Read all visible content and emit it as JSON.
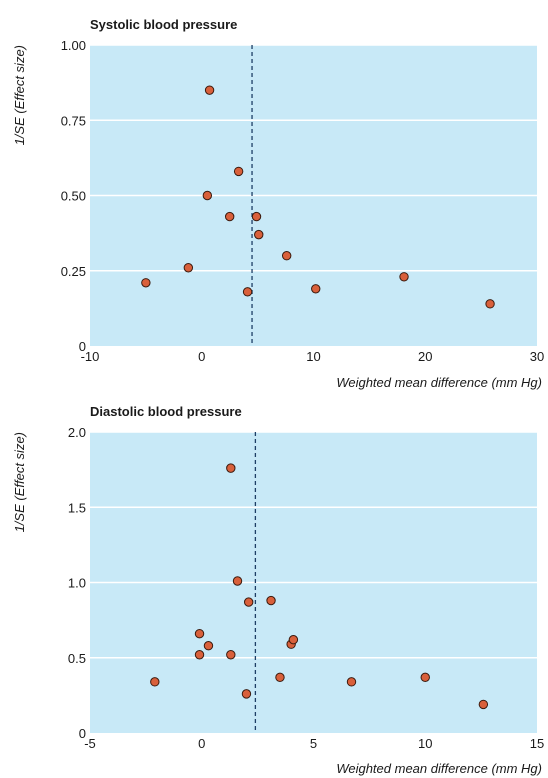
{
  "chart_data": [
    {
      "type": "scatter",
      "title": "Systolic blood pressure",
      "xlabel": "Weighted mean difference (mm Hg)",
      "ylabel": "1/SE (Effect size)",
      "xlim": [
        -10,
        30
      ],
      "ylim": [
        0,
        1.0
      ],
      "xticks": [
        "-10",
        "0",
        "10",
        "20",
        "30"
      ],
      "yticks": [
        "0",
        "0.25",
        "0.50",
        "0.75",
        "1.00"
      ],
      "reference_line_x": 4.5,
      "grid": "horizontal",
      "plot_background": "#c8e9f7",
      "marker_fill": "#d9603b",
      "points": [
        {
          "x": -5.0,
          "y": 0.21
        },
        {
          "x": -1.2,
          "y": 0.26
        },
        {
          "x": 0.5,
          "y": 0.5
        },
        {
          "x": 0.7,
          "y": 0.85
        },
        {
          "x": 2.5,
          "y": 0.43
        },
        {
          "x": 3.3,
          "y": 0.58
        },
        {
          "x": 4.1,
          "y": 0.18
        },
        {
          "x": 4.9,
          "y": 0.43
        },
        {
          "x": 5.1,
          "y": 0.37
        },
        {
          "x": 7.6,
          "y": 0.3
        },
        {
          "x": 10.2,
          "y": 0.19
        },
        {
          "x": 18.1,
          "y": 0.23
        },
        {
          "x": 25.8,
          "y": 0.14
        }
      ]
    },
    {
      "type": "scatter",
      "title": "Diastolic blood pressure",
      "xlabel": "Weighted mean difference (mm Hg)",
      "ylabel": "1/SE (Effect size)",
      "xlim": [
        -5,
        15
      ],
      "ylim": [
        0,
        2.0
      ],
      "xticks": [
        "-5",
        "0",
        "5",
        "10",
        "15"
      ],
      "yticks": [
        "0",
        "0.5",
        "1.0",
        "1.5",
        "2.0"
      ],
      "reference_line_x": 2.4,
      "grid": "horizontal",
      "plot_background": "#c8e9f7",
      "marker_fill": "#d9603b",
      "points": [
        {
          "x": -2.1,
          "y": 0.34
        },
        {
          "x": -0.1,
          "y": 0.66
        },
        {
          "x": -0.1,
          "y": 0.52
        },
        {
          "x": 0.3,
          "y": 0.58
        },
        {
          "x": 1.3,
          "y": 1.76
        },
        {
          "x": 1.3,
          "y": 0.52
        },
        {
          "x": 1.6,
          "y": 1.01
        },
        {
          "x": 2.0,
          "y": 0.26
        },
        {
          "x": 2.1,
          "y": 0.87
        },
        {
          "x": 3.1,
          "y": 0.88
        },
        {
          "x": 3.5,
          "y": 0.37
        },
        {
          "x": 4.0,
          "y": 0.59
        },
        {
          "x": 4.1,
          "y": 0.62
        },
        {
          "x": 6.7,
          "y": 0.34
        },
        {
          "x": 10.0,
          "y": 0.37
        },
        {
          "x": 12.6,
          "y": 0.19
        }
      ]
    }
  ]
}
